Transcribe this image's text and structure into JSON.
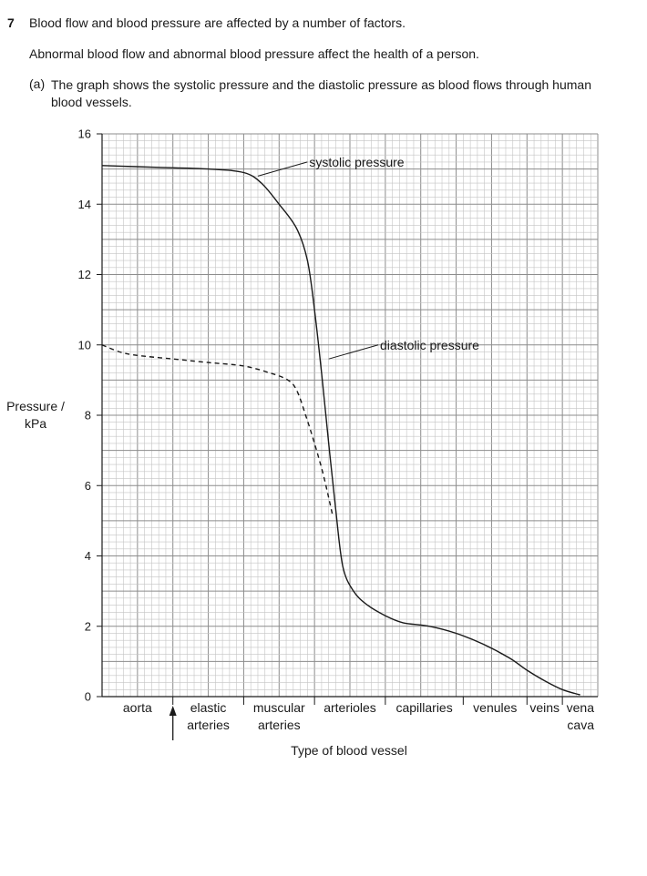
{
  "question": {
    "number": "7",
    "intro": "Blood flow and blood pressure are affected by a number of factors.",
    "line2": "Abnormal blood flow and abnormal blood pressure affect the health of a person.",
    "part_label": "(a)",
    "part_text": "The graph shows the systolic pressure and the diastolic pressure as blood flows through human blood vessels."
  },
  "chart_data": {
    "type": "line",
    "xlabel": "Type of blood vessel",
    "ylabel": "Pressure / kPa",
    "ylim": [
      0,
      16
    ],
    "yticks": [
      0,
      2,
      4,
      6,
      8,
      10,
      12,
      14,
      16
    ],
    "xlim": [
      0,
      28
    ],
    "grid": true,
    "categories": [
      {
        "label": [
          "aorta"
        ],
        "start": 0,
        "end": 4
      },
      {
        "label": [
          "elastic",
          "arteries"
        ],
        "start": 4,
        "end": 8
      },
      {
        "label": [
          "muscular",
          "arteries"
        ],
        "start": 8,
        "end": 12
      },
      {
        "label": [
          "arterioles"
        ],
        "start": 12,
        "end": 16
      },
      {
        "label": [
          "capillaries"
        ],
        "start": 16,
        "end": 20.4
      },
      {
        "label": [
          "venules"
        ],
        "start": 20.4,
        "end": 24
      },
      {
        "label": [
          "veins"
        ],
        "start": 24,
        "end": 26
      },
      {
        "label": [
          "vena",
          "cava"
        ],
        "start": 26,
        "end": 28
      }
    ],
    "arrow_x": 4,
    "series": [
      {
        "name": "systolic pressure",
        "style": "solid",
        "points": [
          [
            0,
            15.1
          ],
          [
            3,
            15.05
          ],
          [
            6,
            15.0
          ],
          [
            8,
            14.9
          ],
          [
            9,
            14.6
          ],
          [
            10,
            14.0
          ],
          [
            11,
            13.3
          ],
          [
            11.6,
            12.4
          ],
          [
            12,
            11.0
          ],
          [
            12.4,
            9.2
          ],
          [
            12.8,
            7.2
          ],
          [
            13.2,
            5.3
          ],
          [
            13.6,
            3.7
          ],
          [
            14.2,
            3.0
          ],
          [
            15,
            2.6
          ],
          [
            16,
            2.3
          ],
          [
            17,
            2.1
          ],
          [
            18.5,
            2.0
          ],
          [
            20,
            1.8
          ],
          [
            21.5,
            1.5
          ],
          [
            23,
            1.1
          ],
          [
            24,
            0.75
          ],
          [
            25,
            0.45
          ],
          [
            26,
            0.2
          ],
          [
            27,
            0.05
          ]
        ]
      },
      {
        "name": "diastolic pressure",
        "style": "dashed",
        "points": [
          [
            0,
            10.0
          ],
          [
            1,
            9.8
          ],
          [
            2,
            9.7
          ],
          [
            4,
            9.6
          ],
          [
            6,
            9.5
          ],
          [
            8,
            9.4
          ],
          [
            9.5,
            9.2
          ],
          [
            10.5,
            9.0
          ],
          [
            11,
            8.7
          ],
          [
            11.5,
            8.0
          ],
          [
            12,
            7.2
          ],
          [
            12.5,
            6.3
          ],
          [
            13,
            5.2
          ]
        ]
      }
    ],
    "annotations": [
      {
        "text": "systolic pressure",
        "pointer_from": [
          8.8,
          14.8
        ],
        "pointer_to": [
          11.6,
          15.2
        ],
        "text_at": [
          11.7,
          15.2
        ]
      },
      {
        "text": "diastolic pressure",
        "pointer_from": [
          12.8,
          9.6
        ],
        "pointer_to": [
          15.6,
          10.0
        ],
        "text_at": [
          15.7,
          10.0
        ]
      }
    ]
  }
}
